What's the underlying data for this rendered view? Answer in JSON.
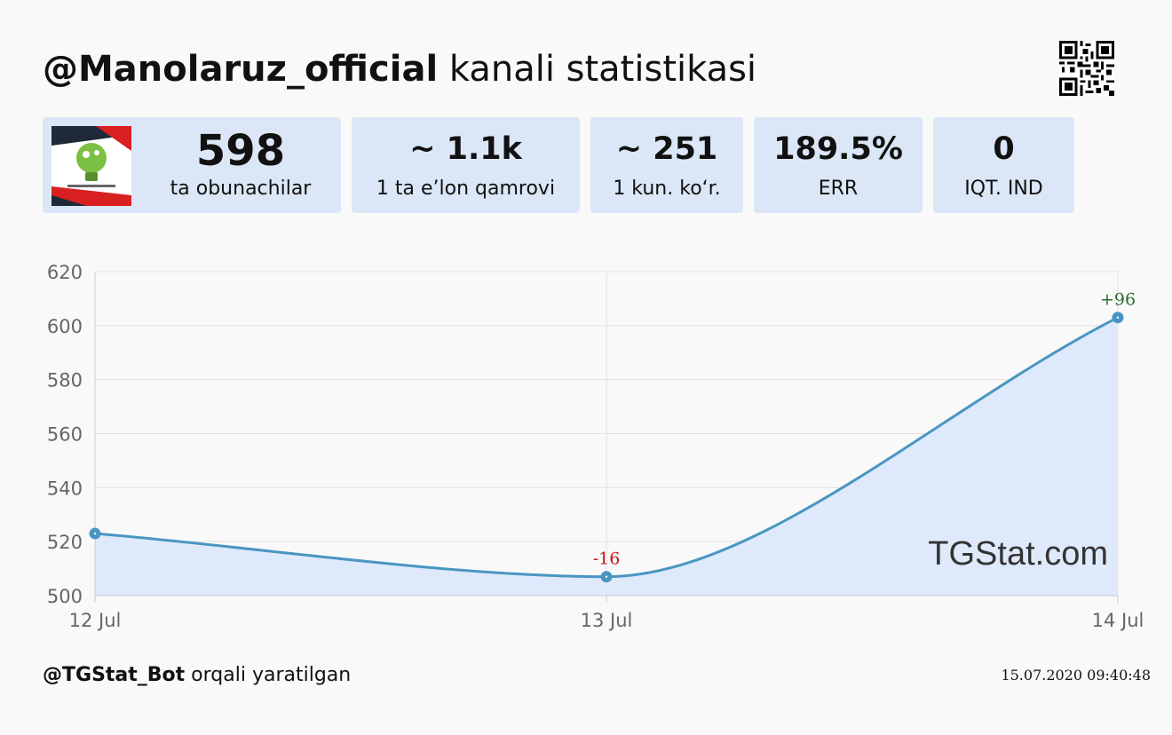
{
  "header": {
    "channel": "@Manolaruz_official",
    "title_suffix": " kanali statistikasi"
  },
  "stats": [
    {
      "value": "598",
      "label": "ta obunachilar"
    },
    {
      "value": "~ 1.1k",
      "label": "1 ta e’lon qamrovi"
    },
    {
      "value": "~ 251",
      "label": "1 kun. ko‘r."
    },
    {
      "value": "189.5%",
      "label": "ERR"
    },
    {
      "value": "0",
      "label": "IQT. IND"
    }
  ],
  "chart_data": {
    "type": "line",
    "categories": [
      "12 Jul",
      "13 Jul",
      "14 Jul"
    ],
    "values": [
      523,
      507,
      603
    ],
    "data_labels": [
      "",
      "-16",
      "+96"
    ],
    "ylim": [
      500,
      620
    ],
    "yticks": [
      500,
      520,
      540,
      560,
      580,
      600,
      620
    ],
    "grid": true,
    "watermark": "TGStat.com",
    "colors": {
      "line": "#4a96c2",
      "fill": "#deeafb",
      "positive": "#2e6b2e",
      "negative": "#cc1111"
    }
  },
  "footer": {
    "bot": "@TGStat_Bot",
    "created_suffix": " orqali yaratilgan",
    "timestamp": "15.07.2020 09:40:48"
  }
}
